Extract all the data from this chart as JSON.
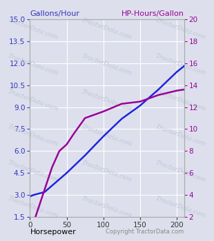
{
  "xlabel": "Horsepower",
  "ylabel_left": "Gallons/Hour",
  "ylabel_right": "HP-Hours/Gallon",
  "copyright": "Copyright TractorData.com",
  "background_color": "#dde0ec",
  "grid_color": "#ffffff",
  "watermark_text": "TractorData.com",
  "watermark_color": "#c0c4d4",
  "blue_x": [
    0,
    5,
    20,
    50,
    75,
    100,
    125,
    150,
    175,
    200,
    210
  ],
  "blue_y": [
    2.9,
    3.0,
    3.2,
    4.5,
    5.7,
    7.0,
    8.2,
    9.1,
    10.2,
    11.4,
    11.8
  ],
  "purple_x": [
    0,
    5,
    10,
    20,
    30,
    40,
    50,
    60,
    75,
    100,
    125,
    150,
    175,
    200,
    210
  ],
  "purple_y_right": [
    1.3,
    1.5,
    2.5,
    4.5,
    6.5,
    8.0,
    8.6,
    9.6,
    11.0,
    11.6,
    12.3,
    12.5,
    13.1,
    13.5,
    13.6
  ],
  "blue_color": "#2222dd",
  "purple_color": "#990099",
  "xlim": [
    0,
    210
  ],
  "ylim_left": [
    1.5,
    15
  ],
  "ylim_right": [
    2,
    20
  ],
  "xticks": [
    0,
    50,
    100,
    150,
    200
  ],
  "yticks_left": [
    1.5,
    3.0,
    4.5,
    6.0,
    7.5,
    9.0,
    10.5,
    12.0,
    13.5,
    15.0
  ],
  "yticks_right": [
    2,
    4,
    6,
    8,
    10,
    12,
    14,
    16,
    18,
    20
  ],
  "left_label_color": "#3333bb",
  "right_label_color": "#990099",
  "xlabel_color": "#000000",
  "copyright_color": "#888888",
  "line_width": 1.8
}
